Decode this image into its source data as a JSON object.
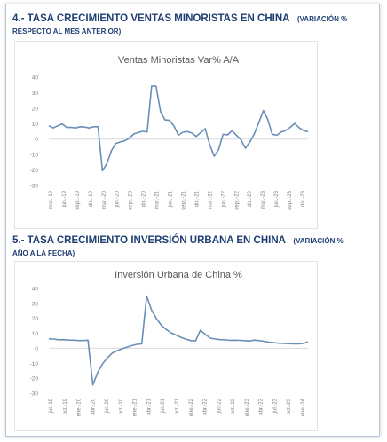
{
  "section1": {
    "number": "4.-",
    "heading": "Tasa crecimiento ventas minoristas en China",
    "heading_caps": "4.- TASA CRECIMIENTO VENTAS MINORISTAS EN CHINA",
    "subnote_line1": "(VARIACIÓN %",
    "subnote_line2": "RESPECTO AL MES ANTERIOR)"
  },
  "section2": {
    "heading_caps": "5.- TASA CRECIMIENTO INVERSIÓN URBANA EN CHINA",
    "subnote_line1": "(VARIACIÓN %",
    "subnote_line2": "AÑO A LA FECHA)"
  },
  "colors": {
    "heading": "#1f3f73",
    "line": "#6a8fb7",
    "axis_text": "#7f7f7f",
    "title": "#595959"
  },
  "chart_data": [
    {
      "type": "line",
      "title": "Ventas Minoristas Var% A/A",
      "ylim": [
        -30,
        40
      ],
      "yticks": [
        40,
        30,
        20,
        10,
        0,
        -10,
        -20,
        -30
      ],
      "grid": false,
      "xlabels": [
        "mar.-19",
        "jun.-19",
        "sept.-19",
        "dic.-19",
        "mar.-20",
        "jun.-20",
        "sept.-20",
        "dic.-20",
        "mar.-21",
        "jun.-21",
        "sept.-21",
        "dic.-21",
        "mar.-22",
        "jun.-22",
        "sept.-22",
        "dic.-22",
        "mar.-23",
        "jun.-23",
        "sept.-23",
        "dic.-23"
      ],
      "series": [
        {
          "values": [
            8.7,
            7.2,
            8.6,
            9.8,
            7.5,
            7.6,
            7.2,
            8.0,
            7.8,
            7.2,
            8.0,
            8.0,
            -20.5,
            -15.8,
            -7.5,
            -2.8,
            -1.8,
            -1.1,
            0.5,
            3.3,
            4.3,
            5.0,
            4.6,
            34.2,
            34.2,
            17.7,
            12.4,
            12.1,
            8.5,
            2.5,
            4.4,
            4.9,
            3.9,
            1.7,
            4.2,
            6.7,
            -3.5,
            -11.1,
            -6.7,
            3.1,
            2.7,
            5.4,
            2.5,
            -0.5,
            -5.9,
            -1.8,
            3.5,
            10.6,
            18.4,
            12.7,
            3.1,
            2.5,
            4.6,
            5.5,
            7.6,
            10.1,
            7.4,
            5.5,
            4.7
          ]
        }
      ]
    },
    {
      "type": "line",
      "title": "Inversión Urbana de China %",
      "ylim": [
        -30,
        40
      ],
      "yticks": [
        40,
        30,
        20,
        10,
        0,
        -10,
        -20,
        -30
      ],
      "grid": false,
      "xlabels": [
        "jul.-19",
        "oct.-19",
        "ene.-20",
        "abr.-20",
        "jul.-20",
        "oct.-20",
        "ene.-21",
        "abr.-21",
        "jul.-21",
        "oct.-21",
        "ene.-22",
        "abr.-22",
        "jul.-22",
        "oct.-22",
        "ene.-23",
        "abr.-23",
        "jul.-23",
        "oct.-23",
        "ene.-24"
      ],
      "series": [
        {
          "values": [
            6.3,
            6.2,
            5.7,
            5.8,
            5.5,
            5.4,
            5.2,
            5.2,
            5.4,
            -24.5,
            -16.1,
            -10.3,
            -6.3,
            -3.1,
            -1.6,
            -0.3,
            0.8,
            1.8,
            2.6,
            2.9,
            35.0,
            25.6,
            19.9,
            15.4,
            12.6,
            10.3,
            8.9,
            7.3,
            6.1,
            5.2,
            4.9,
            12.2,
            9.3,
            6.8,
            6.2,
            5.8,
            5.7,
            5.3,
            5.4,
            5.3,
            5.1,
            4.8,
            5.5,
            5.1,
            4.7,
            4.0,
            3.8,
            3.4,
            3.2,
            3.1,
            2.9,
            3.0,
            3.2,
            4.2
          ]
        }
      ]
    }
  ]
}
